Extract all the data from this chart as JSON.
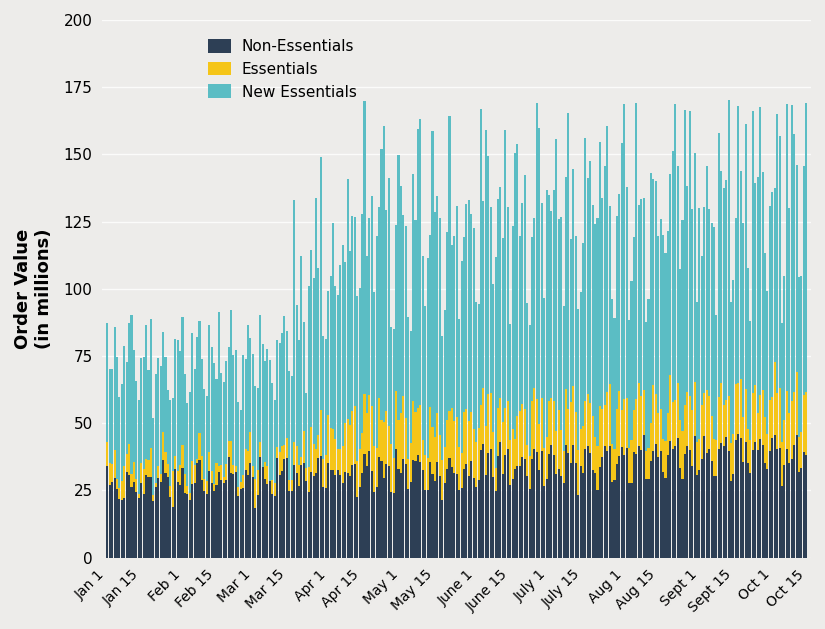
{
  "ylabel": "Order Value\n(in millions)",
  "ylim": [
    0,
    200
  ],
  "yticks": [
    0,
    25,
    50,
    75,
    100,
    125,
    150,
    175,
    200
  ],
  "color_non_essentials": "#2D3F55",
  "color_essentials": "#F5C518",
  "color_new_essentials": "#5BBDC4",
  "background_color": "#EDECEA",
  "legend_labels": [
    "Non-Essentials",
    "Essentials",
    "New Essentials"
  ],
  "xtick_labels": [
    "Jan 1",
    "Jan 15",
    "Feb 1",
    "Feb 15",
    "Mar 1",
    "Mar 15",
    "Apr 1",
    "Apr 15",
    "May 1",
    "May 15",
    "June 1",
    "June 15",
    "July 1",
    "July 15",
    "Aug 1",
    "Aug 15",
    "Sept 1",
    "Sept 15",
    "Oct 1",
    "Oct 15"
  ],
  "tick_positions": [
    0,
    14,
    31,
    45,
    60,
    74,
    91,
    105,
    121,
    135,
    152,
    166,
    182,
    196,
    213,
    227,
    244,
    258,
    274,
    288
  ],
  "n_days": 289
}
